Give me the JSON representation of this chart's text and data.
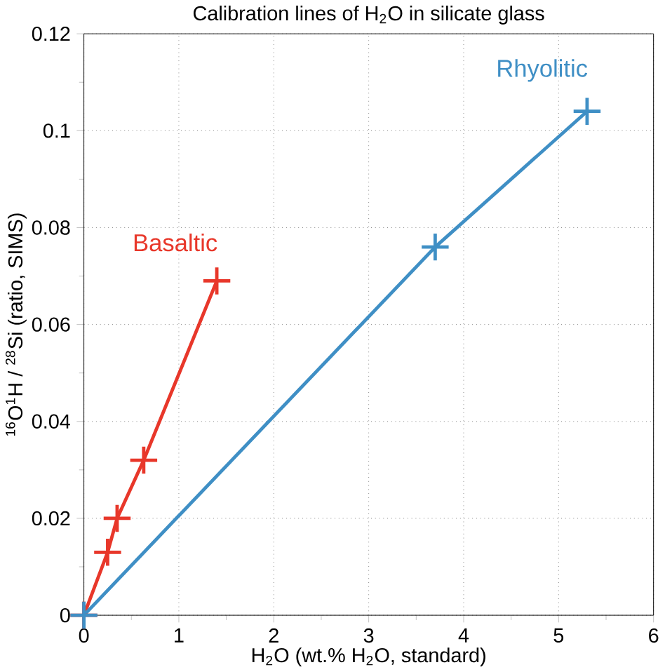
{
  "chart_data": {
    "type": "line",
    "title": "Calibration lines of H$_{2}$O in silicate glass",
    "xlabel": "H$_{2}$O (wt.% H$_{2}$O, standard)",
    "ylabel": "$^{16}$O$^{1}$H / $^{28}$Si (ratio, SIMS)",
    "series": [
      {
        "name": "Basaltic",
        "color": "#e8372a",
        "x": [
          0,
          0.25,
          0.35,
          0.63,
          1.4
        ],
        "values": [
          0,
          0.013,
          0.02,
          0.032,
          0.069
        ]
      },
      {
        "name": "Rhyolitic",
        "color": "#3f8fc5",
        "x": [
          0,
          3.7,
          5.3
        ],
        "values": [
          0,
          0.076,
          0.104
        ]
      }
    ],
    "xlim": [
      0,
      6
    ],
    "ylim": [
      0,
      0.12
    ],
    "xticks": [
      0,
      1,
      2,
      3,
      4,
      5,
      6
    ],
    "yticks": [
      0,
      0.02,
      0.04,
      0.06,
      0.08,
      0.1,
      0.12
    ],
    "grid": true,
    "marker": "cross",
    "line_style": "solid"
  }
}
